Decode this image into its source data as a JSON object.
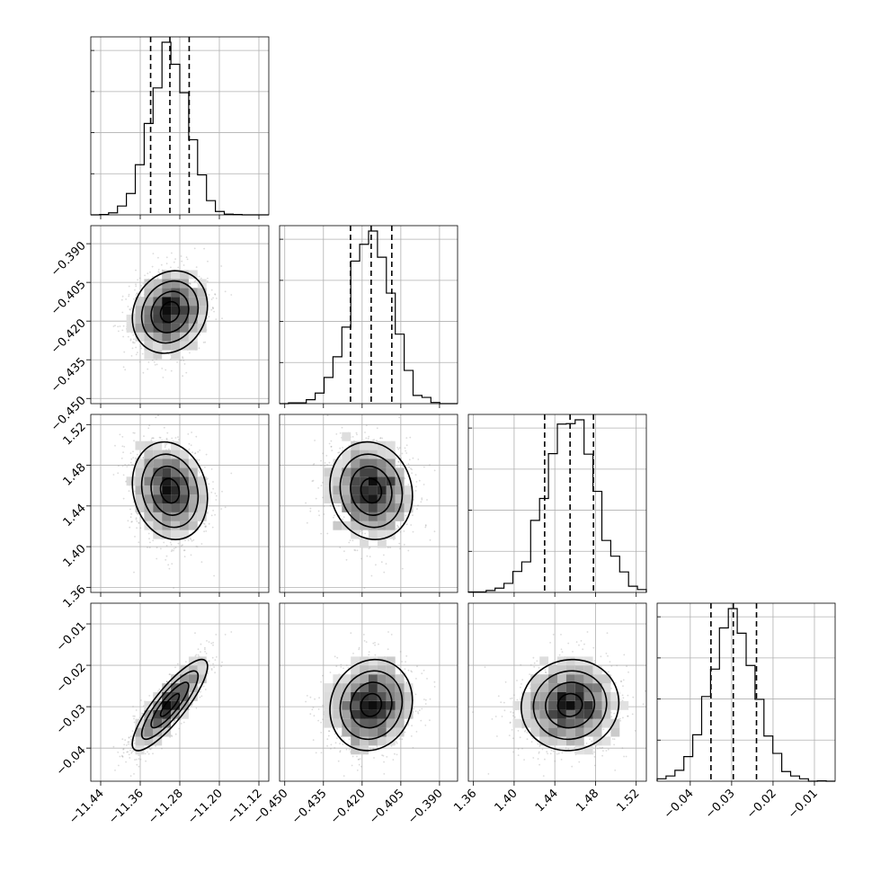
{
  "chart_data": {
    "type": "corner",
    "grid": true,
    "parameters": [
      {
        "id": "p0",
        "range": [
          -11.46,
          -11.1
        ],
        "ticks": [
          -11.44,
          -11.36,
          -11.28,
          -11.2,
          -11.12
        ],
        "tick_labels": [
          "−11.44",
          "−11.36",
          "−11.28",
          "−11.20",
          "−11.12"
        ],
        "quantiles": [
          -11.339,
          -11.3,
          -11.261
        ],
        "mean": -11.3,
        "std": 0.038
      },
      {
        "id": "p1",
        "range": [
          -0.452,
          -0.383
        ],
        "ticks": [
          -0.45,
          -0.435,
          -0.42,
          -0.405,
          -0.39
        ],
        "tick_labels": [
          "−0.450",
          "−0.435",
          "−0.420",
          "−0.405",
          "−0.390"
        ],
        "quantiles": [
          -0.4245,
          -0.4165,
          -0.4085
        ],
        "mean": -0.4165,
        "std": 0.008
      },
      {
        "id": "p2",
        "range": [
          1.355,
          1.53
        ],
        "ticks": [
          1.36,
          1.4,
          1.44,
          1.48,
          1.52
        ],
        "tick_labels": [
          "1.36",
          "1.40",
          "1.44",
          "1.48",
          "1.52"
        ],
        "quantiles": [
          1.43,
          1.455,
          1.478
        ],
        "mean": 1.455,
        "std": 0.024
      },
      {
        "id": "p3",
        "range": [
          -0.048,
          -0.005
        ],
        "ticks": [
          -0.04,
          -0.03,
          -0.02,
          -0.01
        ],
        "tick_labels": [
          "−0.04",
          "−0.03",
          "−0.02",
          "−0.01"
        ],
        "quantiles": [
          -0.035,
          -0.0296,
          -0.024
        ],
        "mean": -0.0296,
        "std": 0.0055
      }
    ],
    "correlations": [
      [
        1,
        0.15,
        -0.15,
        0.85
      ],
      [
        0.15,
        1,
        -0.1,
        0.1
      ],
      [
        -0.15,
        -0.1,
        1,
        0.05
      ],
      [
        0.85,
        0.1,
        0.05,
        1
      ]
    ],
    "contour_levels_sigma": [
      0.5,
      1.0,
      1.5,
      2.0
    ],
    "quantile_levels": [
      0.16,
      0.5,
      0.84
    ]
  }
}
